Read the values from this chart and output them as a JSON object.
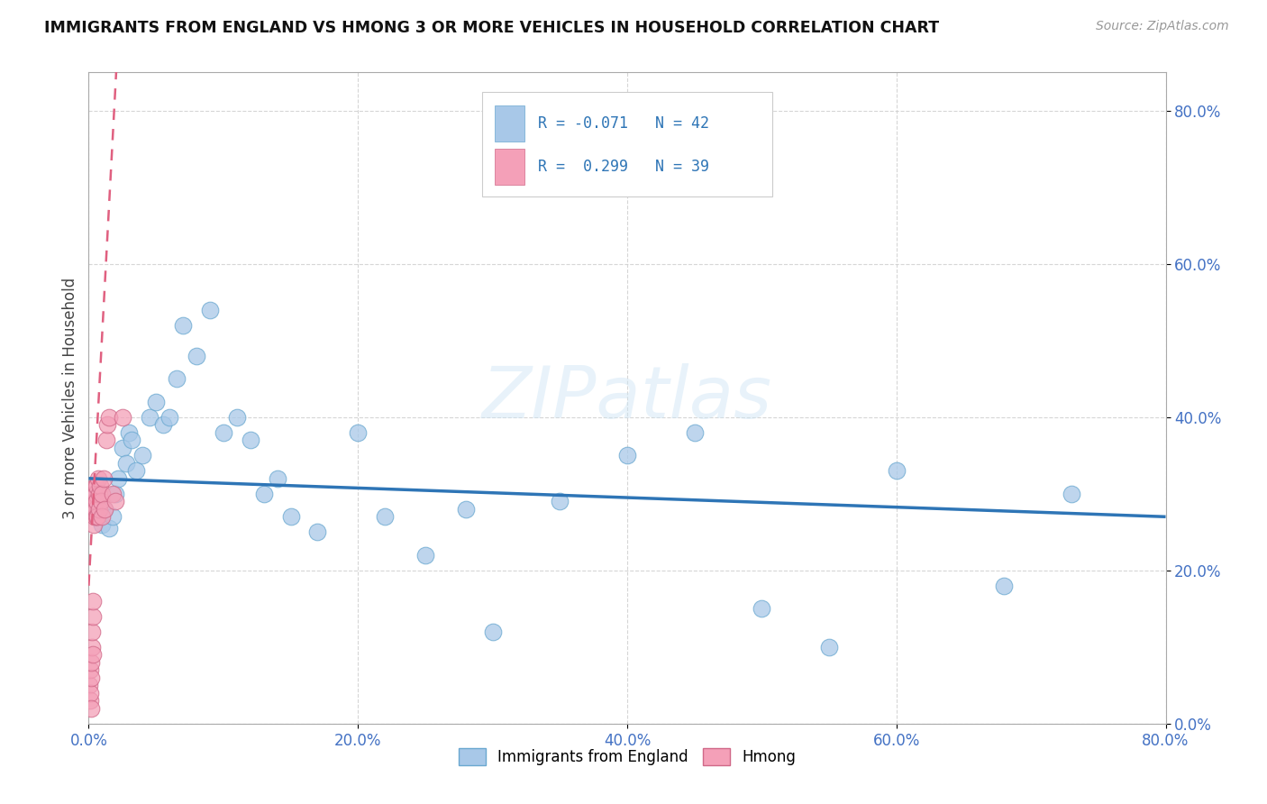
{
  "title": "IMMIGRANTS FROM ENGLAND VS HMONG 3 OR MORE VEHICLES IN HOUSEHOLD CORRELATION CHART",
  "source": "Source: ZipAtlas.com",
  "ylabel_label": "3 or more Vehicles in Household",
  "legend_label1": "Immigrants from England",
  "legend_label2": "Hmong",
  "r1": -0.071,
  "n1": 42,
  "r2": 0.299,
  "n2": 39,
  "color_england": "#a8c8e8",
  "color_hmong": "#f4a0b8",
  "trendline_england_color": "#2e75b6",
  "trendline_hmong_color": "#e06080",
  "england_x": [
    0.4,
    0.6,
    1.0,
    1.2,
    1.5,
    1.8,
    2.0,
    2.2,
    2.5,
    2.8,
    3.0,
    3.2,
    3.5,
    4.0,
    4.5,
    5.0,
    5.5,
    6.0,
    6.5,
    7.0,
    8.0,
    9.0,
    10.0,
    11.0,
    12.0,
    13.0,
    14.0,
    15.0,
    17.0,
    20.0,
    22.0,
    25.0,
    28.0,
    30.0,
    35.0,
    40.0,
    45.0,
    50.0,
    55.0,
    60.0,
    68.0,
    73.0
  ],
  "england_y": [
    30.0,
    27.5,
    26.0,
    28.0,
    25.5,
    27.0,
    30.0,
    32.0,
    36.0,
    34.0,
    38.0,
    37.0,
    33.0,
    35.0,
    40.0,
    42.0,
    39.0,
    40.0,
    45.0,
    52.0,
    48.0,
    54.0,
    38.0,
    40.0,
    37.0,
    30.0,
    32.0,
    27.0,
    25.0,
    38.0,
    27.0,
    22.0,
    28.0,
    12.0,
    29.0,
    35.0,
    38.0,
    15.0,
    10.0,
    33.0,
    18.0,
    30.0
  ],
  "hmong_x": [
    0.05,
    0.08,
    0.1,
    0.12,
    0.15,
    0.18,
    0.2,
    0.22,
    0.25,
    0.28,
    0.3,
    0.32,
    0.35,
    0.38,
    0.4,
    0.42,
    0.45,
    0.48,
    0.5,
    0.52,
    0.55,
    0.58,
    0.6,
    0.65,
    0.7,
    0.75,
    0.8,
    0.85,
    0.9,
    0.95,
    1.0,
    1.1,
    1.2,
    1.3,
    1.4,
    1.5,
    1.8,
    2.0,
    2.5
  ],
  "hmong_y": [
    5.0,
    3.0,
    7.0,
    4.0,
    2.0,
    6.0,
    8.0,
    10.0,
    12.0,
    9.0,
    14.0,
    16.0,
    28.0,
    26.0,
    30.0,
    27.0,
    29.0,
    31.0,
    28.0,
    30.0,
    27.0,
    29.0,
    31.0,
    27.0,
    32.0,
    28.0,
    30.0,
    31.0,
    29.0,
    27.0,
    30.0,
    32.0,
    28.0,
    37.0,
    39.0,
    40.0,
    30.0,
    29.0,
    40.0
  ],
  "xmin": 0.0,
  "xmax": 80.0,
  "ymin": 0.0,
  "ymax": 85.0,
  "x_ticks": [
    0,
    20,
    40,
    60,
    80
  ],
  "y_ticks": [
    0,
    20,
    40,
    60,
    80
  ],
  "tick_color": "#4472c4",
  "grid_color": "#cccccc",
  "spine_color": "#aaaaaa"
}
